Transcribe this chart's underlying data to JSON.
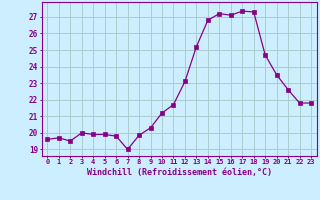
{
  "x": [
    0,
    1,
    2,
    3,
    4,
    5,
    6,
    7,
    8,
    9,
    10,
    11,
    12,
    13,
    14,
    15,
    16,
    17,
    18,
    19,
    20,
    21,
    22,
    23
  ],
  "y": [
    19.6,
    19.7,
    19.5,
    20.0,
    19.9,
    19.9,
    19.8,
    19.0,
    19.85,
    20.3,
    21.2,
    21.7,
    23.1,
    25.2,
    26.8,
    27.2,
    27.1,
    27.35,
    27.3,
    24.7,
    23.5,
    22.6,
    21.8,
    21.8
  ],
  "line_color": "#880088",
  "marker": "s",
  "marker_size": 2.5,
  "bg_color": "#cceeff",
  "grid_color": "#aacccc",
  "xlabel": "Windchill (Refroidissement éolien,°C)",
  "xlabel_color": "#880088",
  "ylabel_ticks": [
    19,
    20,
    21,
    22,
    23,
    24,
    25,
    26,
    27
  ],
  "xtick_labels": [
    "0",
    "1",
    "2",
    "3",
    "4",
    "5",
    "6",
    "7",
    "8",
    "9",
    "10",
    "11",
    "12",
    "13",
    "14",
    "15",
    "16",
    "17",
    "18",
    "19",
    "20",
    "21",
    "22",
    "23"
  ],
  "ylim": [
    18.6,
    27.9
  ],
  "xlim": [
    -0.5,
    23.5
  ],
  "tick_color": "#880088",
  "spine_color": "#880088"
}
